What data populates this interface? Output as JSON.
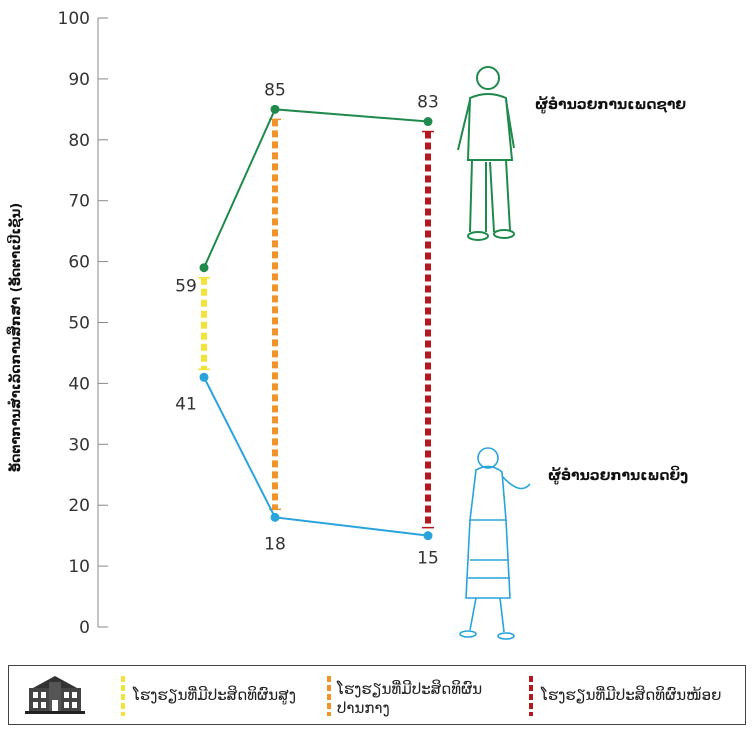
{
  "chart_data": {
    "type": "line",
    "ylabel": "ອັດຕາການສຳເລັດການສຶກສາ (ອັດຕາເປີເຊັນ)",
    "ylim": [
      0,
      100
    ],
    "yticks": [
      0,
      10,
      20,
      30,
      40,
      50,
      60,
      70,
      80,
      90,
      100
    ],
    "categories": [
      "ໂຮງຮຽນທີ່ມີປະສິດທິຜົນສູງ",
      "ໂຮງຮຽນທີ່ມີປະສິດທິຜົນປານກາງ",
      "ໂຮງຮຽນທີ່ມີປະສິດທິຜົນໜ້ອຍ"
    ],
    "series": [
      {
        "name": "ຜູ້ອຳນວຍການເພດຊາຍ",
        "values": [
          59,
          85,
          83
        ],
        "color": "#1f8a4c"
      },
      {
        "name": "ຜູ້ອຳນວຍການເພດຍິງ",
        "values": [
          41,
          18,
          15
        ],
        "color": "#29a3dc"
      }
    ],
    "gaps": [
      {
        "category": "ໂຮງຮຽນທີ່ມີປະສິດທິຜົນສູງ",
        "color": "#f2e23a"
      },
      {
        "category": "ໂຮງຮຽນທີ່ມີປະສິດທິຜົນປານກາງ",
        "color": "#f0932b"
      },
      {
        "category": "ໂຮງຮຽນທີ່ມີປະສິດທິຜົນໜ້ອຍ",
        "color": "#b5171e"
      }
    ]
  },
  "legend": {
    "items": [
      {
        "label": "ໂຮງຮຽນທີ່ມີປະສິດທິຜົນສູງ",
        "color": "#f2e23a"
      },
      {
        "label": "ໂຮງຮຽນທີ່ມີປະສິດທິຜົນປານກາງ",
        "color": "#f0932b"
      },
      {
        "label": "ໂຮງຮຽນທີ່ມີປະສິດທິຜົນໜ້ອຍ",
        "color": "#b5171e"
      }
    ],
    "icon": "school-building-icon"
  },
  "figures": {
    "male_icon": "man-figure-icon",
    "female_icon": "woman-figure-icon"
  }
}
